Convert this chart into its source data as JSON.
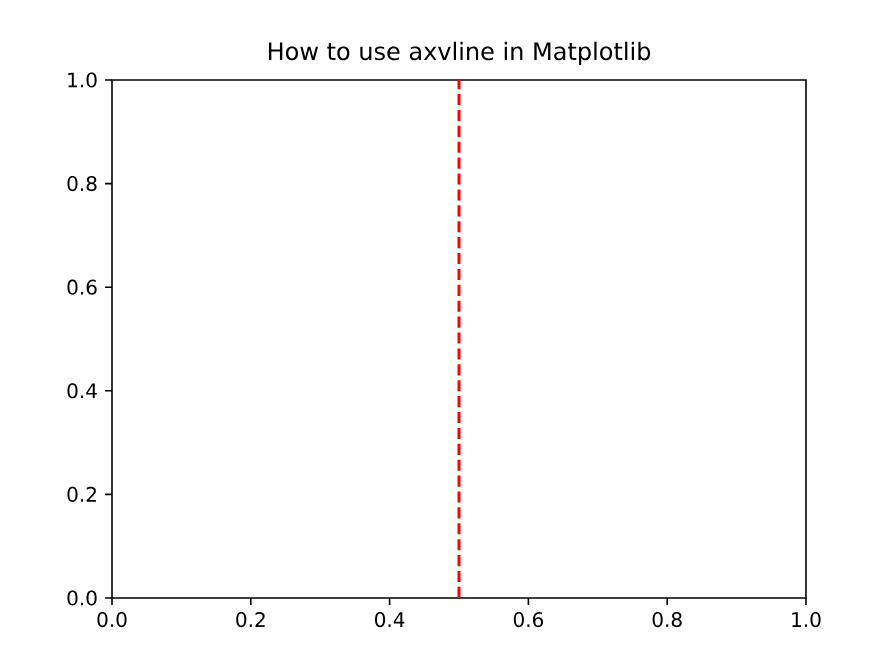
{
  "chart_data": {
    "type": "line",
    "title": "How to use axvline in Matplotlib",
    "xlim": [
      0,
      1
    ],
    "ylim": [
      0,
      1
    ],
    "xticks": [
      {
        "value": 0,
        "label": "0.0"
      },
      {
        "value": 0.2,
        "label": "0.2"
      },
      {
        "value": 0.4,
        "label": "0.4"
      },
      {
        "value": 0.6,
        "label": "0.6"
      },
      {
        "value": 0.8,
        "label": "0.8"
      },
      {
        "value": 1,
        "label": "1.0"
      }
    ],
    "yticks": [
      {
        "value": 0,
        "label": "0.0"
      },
      {
        "value": 0.2,
        "label": "0.2"
      },
      {
        "value": 0.4,
        "label": "0.4"
      },
      {
        "value": 0.6,
        "label": "0.6"
      },
      {
        "value": 0.8,
        "label": "0.8"
      },
      {
        "value": 1,
        "label": "1.0"
      }
    ],
    "ref_lines": [
      {
        "axis": "x",
        "value": 0.5,
        "color": "#ff0000",
        "line_style": "dashed"
      }
    ]
  }
}
